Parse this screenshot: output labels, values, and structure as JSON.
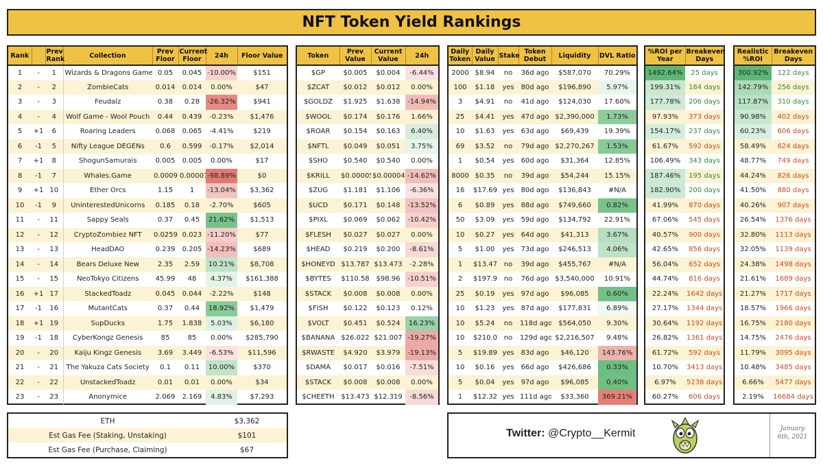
{
  "title": "NFT Token Yield Rankings",
  "colors": {
    "header_gold": "#f0c244",
    "stripe": "#fbf3d3",
    "positive_green": "#2e8b3a",
    "negative_orange": "#d0481e"
  },
  "table1": {
    "headers": [
      "Rank",
      "",
      "Prev Rank",
      "Collection",
      "Prev Floor",
      "Current Floor",
      "24h",
      "Floor Value"
    ],
    "rows": [
      {
        "rank": "1",
        "chg": "-",
        "prev": "1",
        "name": "Wizards & Dragons Game",
        "pf": "0.05",
        "cf": "0.045",
        "d24": "-10.00%",
        "fv": "$151"
      },
      {
        "rank": "2",
        "chg": "-",
        "prev": "2",
        "name": "ZombieCats",
        "pf": "0.014",
        "cf": "0.014",
        "d24": "0.00%",
        "fv": "$47"
      },
      {
        "rank": "3",
        "chg": "-",
        "prev": "3",
        "name": "Feudalz",
        "pf": "0.38",
        "cf": "0.28",
        "d24": "-26.32%",
        "fv": "$941"
      },
      {
        "rank": "4",
        "chg": "-",
        "prev": "4",
        "name": "Wolf Game - Wool Pouch",
        "pf": "0.44",
        "cf": "0.439",
        "d24": "-0.23%",
        "fv": "$1,476"
      },
      {
        "rank": "5",
        "chg": "+1",
        "prev": "6",
        "name": "Roaring Leaders",
        "pf": "0.068",
        "cf": "0.065",
        "d24": "-4.41%",
        "fv": "$219"
      },
      {
        "rank": "6",
        "chg": "-1",
        "prev": "5",
        "name": "Nifty League DEGENs",
        "pf": "0.6",
        "cf": "0.599",
        "d24": "-0.17%",
        "fv": "$2,014"
      },
      {
        "rank": "7",
        "chg": "+1",
        "prev": "8",
        "name": "ShogunSamurais",
        "pf": "0.005",
        "cf": "0.005",
        "d24": "0.00%",
        "fv": "$17"
      },
      {
        "rank": "8",
        "chg": "-1",
        "prev": "7",
        "name": "Whales.Game",
        "pf": "0.0009",
        "cf": "0.00001",
        "d24": "-98.89%",
        "fv": "$0"
      },
      {
        "rank": "9",
        "chg": "+1",
        "prev": "10",
        "name": "Ether Orcs",
        "pf": "1.15",
        "cf": "1",
        "d24": "-13.04%",
        "fv": "$3,362"
      },
      {
        "rank": "10",
        "chg": "-1",
        "prev": "9",
        "name": "UninterestedUnicorns",
        "pf": "0.185",
        "cf": "0.18",
        "d24": "-2.70%",
        "fv": "$605"
      },
      {
        "rank": "11",
        "chg": "-",
        "prev": "11",
        "name": "Sappy Seals",
        "pf": "0.37",
        "cf": "0.45",
        "d24": "21.62%",
        "fv": "$1,513"
      },
      {
        "rank": "12",
        "chg": "-",
        "prev": "12",
        "name": "CryptoZombiez NFT",
        "pf": "0.0259",
        "cf": "0.023",
        "d24": "-11.20%",
        "fv": "$77"
      },
      {
        "rank": "13",
        "chg": "-",
        "prev": "13",
        "name": "HeadDAO",
        "pf": "0.239",
        "cf": "0.205",
        "d24": "-14.23%",
        "fv": "$689"
      },
      {
        "rank": "14",
        "chg": "-",
        "prev": "14",
        "name": "Bears Deluxe New",
        "pf": "2.35",
        "cf": "2.59",
        "d24": "10.21%",
        "fv": "$8,708"
      },
      {
        "rank": "15",
        "chg": "-",
        "prev": "15",
        "name": "NeoTokyo Citizens",
        "pf": "45.99",
        "cf": "48",
        "d24": "4.37%",
        "fv": "$161,388"
      },
      {
        "rank": "16",
        "chg": "+1",
        "prev": "17",
        "name": "StackedToadz",
        "pf": "0.045",
        "cf": "0.044",
        "d24": "-2.22%",
        "fv": "$148"
      },
      {
        "rank": "17",
        "chg": "-1",
        "prev": "16",
        "name": "MutantCats",
        "pf": "0.37",
        "cf": "0.44",
        "d24": "18.92%",
        "fv": "$1,479"
      },
      {
        "rank": "18",
        "chg": "+1",
        "prev": "19",
        "name": "SupDucks",
        "pf": "1.75",
        "cf": "1.838",
        "d24": "5.03%",
        "fv": "$6,180"
      },
      {
        "rank": "19",
        "chg": "-1",
        "prev": "18",
        "name": "CyberKongz Genesis",
        "pf": "85",
        "cf": "85",
        "d24": "0.00%",
        "fv": "$285,790"
      },
      {
        "rank": "20",
        "chg": "-",
        "prev": "20",
        "name": "Kaiju Kingz Genesis",
        "pf": "3.69",
        "cf": "3.449",
        "d24": "-6.53%",
        "fv": "$11,596"
      },
      {
        "rank": "21",
        "chg": "-",
        "prev": "21",
        "name": "The Yakuza Cats Society",
        "pf": "0.1",
        "cf": "0.11",
        "d24": "10.00%",
        "fv": "$370"
      },
      {
        "rank": "22",
        "chg": "-",
        "prev": "22",
        "name": "UnstackedToadz",
        "pf": "0.01",
        "cf": "0.01",
        "d24": "0.00%",
        "fv": "$34"
      },
      {
        "rank": "23",
        "chg": "-",
        "prev": "23",
        "name": "Anonymice",
        "pf": "2.069",
        "cf": "2.169",
        "d24": "4.83%",
        "fv": "$7,293"
      }
    ]
  },
  "table2": {
    "headers": [
      "Token",
      "Prev Value",
      "Current Value",
      "24h"
    ],
    "rows": [
      {
        "tok": "$GP",
        "pv": "$0.005",
        "cv": "$0.004",
        "d24": "-6.44%"
      },
      {
        "tok": "$ZCAT",
        "pv": "$0.012",
        "cv": "$0.012",
        "d24": "0.00%"
      },
      {
        "tok": "$GOLDZ",
        "pv": "$1.925",
        "cv": "$1.638",
        "d24": "-14.94%"
      },
      {
        "tok": "$WOOL",
        "pv": "$0.174",
        "cv": "$0.176",
        "d24": "1.66%"
      },
      {
        "tok": "$ROAR",
        "pv": "$0.154",
        "cv": "$0.163",
        "d24": "6.40%"
      },
      {
        "tok": "$NFTL",
        "pv": "$0.049",
        "cv": "$0.051",
        "d24": "3.75%"
      },
      {
        "tok": "$SHO",
        "pv": "$0.540",
        "cv": "$0.540",
        "d24": "0.00%"
      },
      {
        "tok": "$KRILL",
        "pv": "$0.00005",
        "cv": "$0.00004",
        "d24": "-14.62%"
      },
      {
        "tok": "$ZUG",
        "pv": "$1.181",
        "cv": "$1.106",
        "d24": "-6.36%"
      },
      {
        "tok": "$UCD",
        "pv": "$0.171",
        "cv": "$0.148",
        "d24": "-13.52%"
      },
      {
        "tok": "$PIXL",
        "pv": "$0.069",
        "cv": "$0.062",
        "d24": "-10.42%"
      },
      {
        "tok": "$FLESH",
        "pv": "$0.027",
        "cv": "$0.027",
        "d24": "0.00%"
      },
      {
        "tok": "$HEAD",
        "pv": "$0.219",
        "cv": "$0.200",
        "d24": "-8.61%"
      },
      {
        "tok": "$HONEYD",
        "pv": "$13.787",
        "cv": "$13.473",
        "d24": "-2.28%"
      },
      {
        "tok": "$BYTES",
        "pv": "$110.58",
        "cv": "$98.96",
        "d24": "-10.51%"
      },
      {
        "tok": "$STACK",
        "pv": "$0.008",
        "cv": "$0.008",
        "d24": "0.00%"
      },
      {
        "tok": "$FISH",
        "pv": "$0.122",
        "cv": "$0.123",
        "d24": "0.12%"
      },
      {
        "tok": "$VOLT",
        "pv": "$0.451",
        "cv": "$0.524",
        "d24": "16.23%"
      },
      {
        "tok": "$BANANA",
        "pv": "$26.022",
        "cv": "$21.007",
        "d24": "-19.27%"
      },
      {
        "tok": "$RWASTE",
        "pv": "$4.920",
        "cv": "$3.979",
        "d24": "-19.13%"
      },
      {
        "tok": "$DAMA",
        "pv": "$0.017",
        "cv": "$0.016",
        "d24": "-7.51%"
      },
      {
        "tok": "$STACK",
        "pv": "$0.008",
        "cv": "$0.008",
        "d24": "0.00%"
      },
      {
        "tok": "$CHEETH",
        "pv": "$13.473",
        "cv": "$12.319",
        "d24": "-8.56%"
      }
    ]
  },
  "table3": {
    "headers": [
      "Daily Token",
      "Daily Value",
      "Stake",
      "Token Debut",
      "Liquidity",
      "DVL Ratio"
    ],
    "rows": [
      {
        "dt": "2000",
        "dv": "$8.94",
        "st": "no",
        "deb": "36d ago",
        "liq": "$587,070",
        "dvl": "70.29%"
      },
      {
        "dt": "100",
        "dv": "$1.18",
        "st": "yes",
        "deb": "80d ago",
        "liq": "$196,890",
        "dvl": "5.97%"
      },
      {
        "dt": "3",
        "dv": "$4.91",
        "st": "no",
        "deb": "41d ago",
        "liq": "$124,030",
        "dvl": "17.60%"
      },
      {
        "dt": "25",
        "dv": "$4.41",
        "st": "yes",
        "deb": "47d ago",
        "liq": "$2,390,000",
        "dvl": "1.73%"
      },
      {
        "dt": "10",
        "dv": "$1.63",
        "st": "yes",
        "deb": "63d ago",
        "liq": "$69,439",
        "dvl": "19.39%"
      },
      {
        "dt": "69",
        "dv": "$3.52",
        "st": "no",
        "deb": "79d ago",
        "liq": "$2,270,267",
        "dvl": "1.53%"
      },
      {
        "dt": "1",
        "dv": "$0.54",
        "st": "yes",
        "deb": "60d ago",
        "liq": "$31,364",
        "dvl": "12.85%"
      },
      {
        "dt": "8000",
        "dv": "$0.35",
        "st": "no",
        "deb": "39d ago",
        "liq": "$54,244",
        "dvl": "15.15%"
      },
      {
        "dt": "16",
        "dv": "$17.69",
        "st": "yes",
        "deb": "80d ago",
        "liq": "$136,843",
        "dvl": "#N/A"
      },
      {
        "dt": "6",
        "dv": "$0.89",
        "st": "yes",
        "deb": "88d ago",
        "liq": "$749,660",
        "dvl": "0.82%"
      },
      {
        "dt": "50",
        "dv": "$3.09",
        "st": "yes",
        "deb": "59d ago",
        "liq": "$134,792",
        "dvl": "22.91%"
      },
      {
        "dt": "10",
        "dv": "$0.27",
        "st": "yes",
        "deb": "64d ago",
        "liq": "$41,313",
        "dvl": "3.67%"
      },
      {
        "dt": "5",
        "dv": "$1.00",
        "st": "yes",
        "deb": "73d ago",
        "liq": "$246,513",
        "dvl": "4.06%"
      },
      {
        "dt": "1",
        "dv": "$13.47",
        "st": "no",
        "deb": "39d ago",
        "liq": "$455,767",
        "dvl": "#N/A"
      },
      {
        "dt": "2",
        "dv": "$197.92",
        "st": "no",
        "deb": "76d ago",
        "liq": "$3,540,000",
        "dvl": "10.91%"
      },
      {
        "dt": "25",
        "dv": "$0.19",
        "st": "yes",
        "deb": "97d ago",
        "liq": "$96,085",
        "dvl": "0.60%"
      },
      {
        "dt": "10",
        "dv": "$1.23",
        "st": "yes",
        "deb": "87d ago",
        "liq": "$177,831",
        "dvl": "6.89%"
      },
      {
        "dt": "10",
        "dv": "$5.24",
        "st": "no",
        "deb": "118d ago",
        "liq": "$564,050",
        "dvl": "9.30%"
      },
      {
        "dt": "10",
        "dv": "$210.07",
        "st": "no",
        "deb": "129d ago",
        "liq": "$2,216,507",
        "dvl": "9.48%"
      },
      {
        "dt": "5",
        "dv": "$19.89",
        "st": "yes",
        "deb": "83d ago",
        "liq": "$46,120",
        "dvl": "143.76%"
      },
      {
        "dt": "10",
        "dv": "$0.16",
        "st": "yes",
        "deb": "66d ago",
        "liq": "$426,686",
        "dvl": "0.33%"
      },
      {
        "dt": "5",
        "dv": "$0.04",
        "st": "yes",
        "deb": "97d ago",
        "liq": "$96,085",
        "dvl": "0.40%"
      },
      {
        "dt": "1",
        "dv": "$12.32",
        "st": "yes",
        "deb": "111d ago",
        "liq": "$33,360",
        "dvl": "369.21%"
      }
    ]
  },
  "table4": {
    "headers": [
      "%ROI per Year",
      "Breakeven Days"
    ],
    "rows": [
      {
        "roi": "1492.64%",
        "be": "25 days"
      },
      {
        "roi": "199.31%",
        "be": "184 days"
      },
      {
        "roi": "177.78%",
        "be": "206 days"
      },
      {
        "roi": "97.93%",
        "be": "373 days"
      },
      {
        "roi": "154.17%",
        "be": "237 days"
      },
      {
        "roi": "61.67%",
        "be": "592 days"
      },
      {
        "roi": "106.49%",
        "be": "343 days"
      },
      {
        "roi": "187.46%",
        "be": "195 days"
      },
      {
        "roi": "182.90%",
        "be": "200 days"
      },
      {
        "roi": "41.99%",
        "be": "870 days"
      },
      {
        "roi": "67.06%",
        "be": "545 days"
      },
      {
        "roi": "40.57%",
        "be": "900 days"
      },
      {
        "roi": "42.65%",
        "be": "856 days"
      },
      {
        "roi": "56.04%",
        "be": "652 days"
      },
      {
        "roi": "44.74%",
        "be": "816 days"
      },
      {
        "roi": "22.24%",
        "be": "1642 days"
      },
      {
        "roi": "27.17%",
        "be": "1344 days"
      },
      {
        "roi": "30.64%",
        "be": "1192 days"
      },
      {
        "roi": "26.82%",
        "be": "1361 days"
      },
      {
        "roi": "61.72%",
        "be": "592 days"
      },
      {
        "roi": "10.70%",
        "be": "3413 days"
      },
      {
        "roi": "6.97%",
        "be": "5238 days"
      },
      {
        "roi": "60.27%",
        "be": "606 days"
      }
    ]
  },
  "table5": {
    "headers": [
      "Realistic %ROI",
      "Breakeven Days"
    ],
    "rows": [
      {
        "roi": "300.92%",
        "be": "122 days"
      },
      {
        "roi": "142.79%",
        "be": "256 days"
      },
      {
        "roi": "117.87%",
        "be": "310 days"
      },
      {
        "roi": "90.98%",
        "be": "402 days"
      },
      {
        "roi": "60.23%",
        "be": "606 days"
      },
      {
        "roi": "58.49%",
        "be": "624 days"
      },
      {
        "roi": "48.77%",
        "be": "749 days"
      },
      {
        "roi": "44.24%",
        "be": "826 days"
      },
      {
        "roi": "41.50%",
        "be": "880 days"
      },
      {
        "roi": "40.26%",
        "be": "907 days"
      },
      {
        "roi": "26.54%",
        "be": "1376 days"
      },
      {
        "roi": "32.80%",
        "be": "1113 days"
      },
      {
        "roi": "32.05%",
        "be": "1139 days"
      },
      {
        "roi": "24.38%",
        "be": "1498 days"
      },
      {
        "roi": "21.61%",
        "be": "1689 days"
      },
      {
        "roi": "21.27%",
        "be": "1717 days"
      },
      {
        "roi": "18.57%",
        "be": "1966 days"
      },
      {
        "roi": "16.75%",
        "be": "2180 days"
      },
      {
        "roi": "14.75%",
        "be": "2476 days"
      },
      {
        "roi": "11.79%",
        "be": "3095 days"
      },
      {
        "roi": "10.48%",
        "be": "3485 days"
      },
      {
        "roi": "6.66%",
        "be": "5477 days"
      },
      {
        "roi": "2.19%",
        "be": "16684 days"
      }
    ]
  },
  "footer": {
    "rows": [
      {
        "label": "ETH",
        "value": "$3,362"
      },
      {
        "label": "Est Gas Fee (Staking, Unstaking)",
        "value": "$101"
      },
      {
        "label": "Est Gas Fee (Purchase, Claiming)",
        "value": "$67"
      }
    ],
    "twitter_label": "Twitter:",
    "twitter_handle": " @Crypto__Kermit",
    "date_line1": "January",
    "date_line2": "6th, 2021",
    "mascot_icon": "frog-mascot-icon"
  }
}
